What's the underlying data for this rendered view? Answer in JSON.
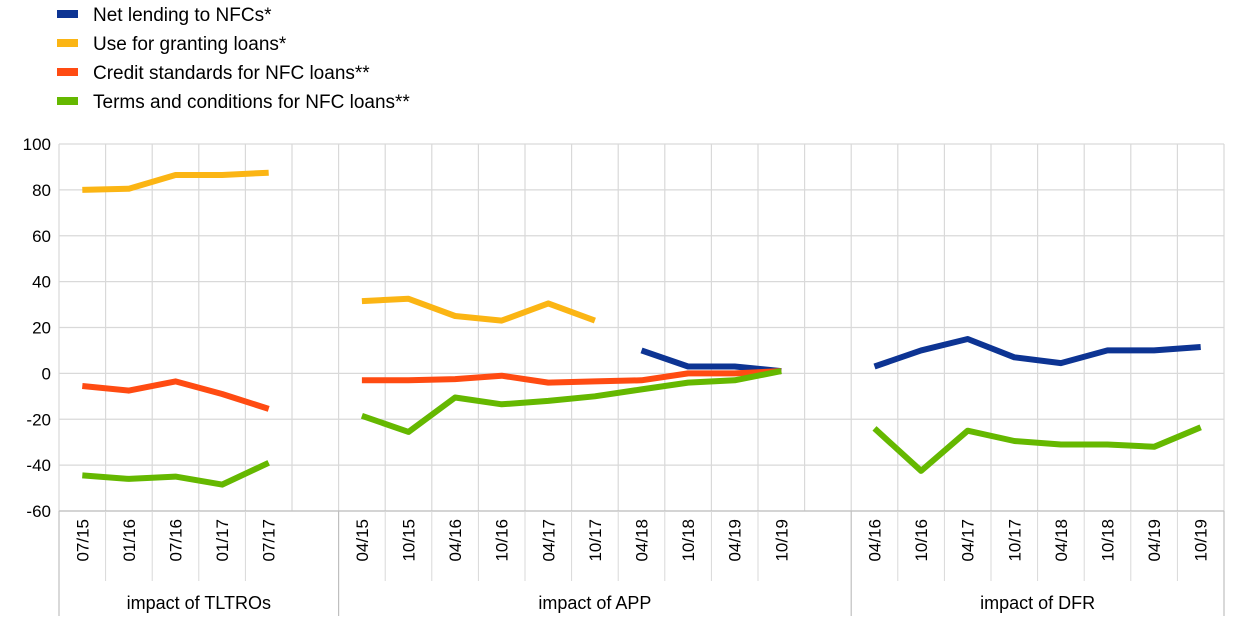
{
  "chart_data": {
    "type": "line",
    "title": "",
    "xlabel": "",
    "ylabel": "",
    "ylim": [
      -60,
      100
    ],
    "y_ticks": [
      -60,
      -40,
      -20,
      0,
      20,
      40,
      60,
      80,
      100
    ],
    "grid": true,
    "legend_position": "top-left",
    "groups": [
      {
        "label": "impact of TLTROs",
        "categories": [
          "07/15",
          "01/16",
          "07/16",
          "01/17",
          "07/17"
        ]
      },
      {
        "label": "impact of APP",
        "categories": [
          "04/15",
          "10/15",
          "04/16",
          "10/16",
          "04/17",
          "10/17",
          "04/18",
          "10/18",
          "04/19",
          "10/19"
        ]
      },
      {
        "label": "impact of DFR",
        "categories": [
          "04/16",
          "10/16",
          "04/17",
          "10/17",
          "04/18",
          "10/18",
          "04/19",
          "10/19"
        ]
      }
    ],
    "series": [
      {
        "name": "Net lending to NFCs*",
        "color": "#0d3493",
        "values": [
          [
            null,
            null,
            null,
            null,
            null
          ],
          [
            null,
            null,
            null,
            null,
            null,
            null,
            10,
            3,
            3,
            1
          ],
          [
            3,
            10,
            15,
            7,
            4.5,
            10,
            10,
            11.5
          ]
        ]
      },
      {
        "name": "Use for granting loans*",
        "color": "#fbb514",
        "values": [
          [
            80,
            80.5,
            86.5,
            86.5,
            87.5
          ],
          [
            31.5,
            32.5,
            25,
            23,
            30.5,
            23,
            null,
            null,
            null,
            null
          ],
          [
            null,
            null,
            null,
            null,
            null,
            null,
            null,
            null
          ]
        ]
      },
      {
        "name": "Credit standards for NFC loans**",
        "color": "#ff4b12",
        "values": [
          [
            -5.5,
            -7.5,
            -3.5,
            -9,
            -15.5
          ],
          [
            -3,
            -3,
            -2.5,
            -1,
            -4,
            -3.5,
            -3,
            0,
            0,
            1
          ],
          [
            null,
            null,
            null,
            null,
            null,
            null,
            null,
            null
          ]
        ]
      },
      {
        "name": "Terms and conditions for NFC loans**",
        "color": "#65b800",
        "values": [
          [
            -44.5,
            -46,
            -45,
            -48.5,
            -39
          ],
          [
            -18.5,
            -25.5,
            -10.5,
            -13.5,
            -12,
            -10,
            -7,
            -4,
            -3,
            1
          ],
          [
            -24,
            -42.5,
            -25,
            -29.5,
            -31,
            -31,
            -32,
            -23.5
          ]
        ]
      }
    ]
  }
}
